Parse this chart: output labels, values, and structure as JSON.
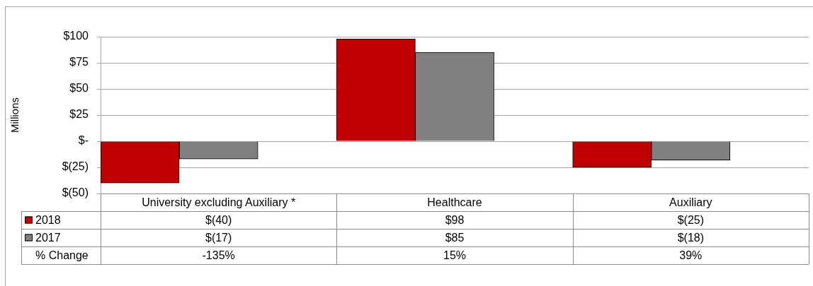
{
  "chart_data": {
    "type": "bar",
    "ylabel": "Millions",
    "categories": [
      "University excluding Auxiliary *",
      "Healthcare",
      "Auxiliary"
    ],
    "series": [
      {
        "name": "2018",
        "color": "#c00000",
        "values": [
          -40,
          98,
          -25
        ],
        "value_labels": [
          "$(40)",
          "$98",
          "$(25)"
        ]
      },
      {
        "name": "2017",
        "color": "#808080",
        "values": [
          -17,
          85,
          -18
        ],
        "value_labels": [
          "$(17)",
          "$85",
          "$(18)"
        ]
      }
    ],
    "ylim": [
      -50,
      100
    ],
    "yticks": [
      {
        "value": -50,
        "label": "$(50)"
      },
      {
        "value": -25,
        "label": "$(25)"
      },
      {
        "value": 0,
        "label": "$-"
      },
      {
        "value": 25,
        "label": "$25"
      },
      {
        "value": 50,
        "label": "$50"
      },
      {
        "value": 75,
        "label": "$75"
      },
      {
        "value": 100,
        "label": "$100"
      }
    ],
    "grid": "y",
    "legend": "bottom left",
    "annotations": [
      "% Change",
      "-135%",
      "15%",
      "39%"
    ]
  }
}
